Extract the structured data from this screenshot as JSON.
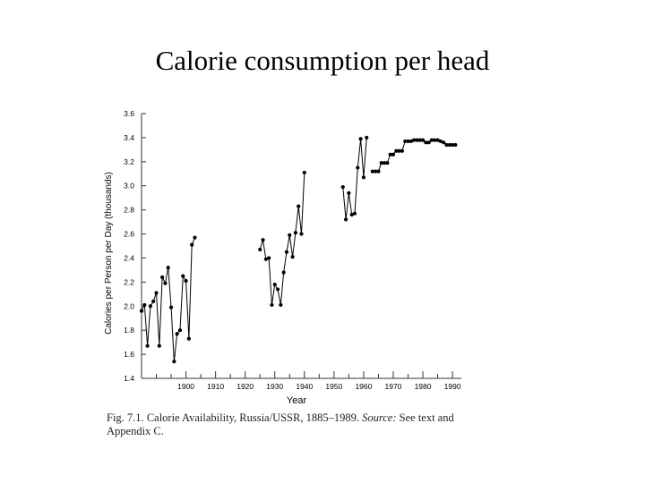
{
  "slide": {
    "title": "Calorie consumption per head"
  },
  "chart_data": {
    "type": "line",
    "title": "",
    "xlabel": "Year",
    "ylabel": "Calories per Person per Day (thousands)",
    "xlim": [
      1885,
      1993
    ],
    "ylim": [
      1.4,
      3.6
    ],
    "x_ticks": [
      1900,
      1910,
      1920,
      1930,
      1940,
      1950,
      1960,
      1970,
      1980,
      1990
    ],
    "y_ticks": [
      "1.4",
      "1.6",
      "1.8",
      "2.0",
      "2.2",
      "2.4",
      "2.6",
      "2.8",
      "3.0",
      "3.2",
      "3.4",
      "3.6"
    ],
    "grid": false,
    "legend": "none",
    "line_color": "#000000",
    "segments": [
      {
        "x": [
          1885,
          1886,
          1887,
          1888,
          1889,
          1890,
          1891,
          1892,
          1893,
          1894,
          1895,
          1896,
          1897,
          1898,
          1899,
          1900,
          1901,
          1902,
          1903,
          1904,
          1905,
          1906,
          1907,
          1908,
          1909,
          1910,
          1911,
          1912,
          1913
        ],
        "y": [
          1.96,
          2.01,
          1.67,
          2.0,
          2.04,
          2.11,
          1.67,
          2.24,
          2.19,
          2.32,
          1.99,
          1.54,
          1.77,
          1.8,
          2.25,
          2.21,
          1.73,
          2.51,
          2.57,
          null,
          null,
          null,
          null,
          null,
          null,
          null,
          null,
          null,
          null
        ]
      },
      {
        "x": [
          1925,
          1926,
          1927,
          1928,
          1929,
          1930,
          1931,
          1932,
          1933,
          1934,
          1935,
          1936,
          1937,
          1938,
          1939,
          1940
        ],
        "y": [
          2.47,
          2.55,
          2.39,
          2.4,
          2.01,
          2.18,
          2.14,
          2.01,
          2.28,
          2.45,
          2.59,
          2.41,
          2.61,
          2.83,
          2.6,
          3.11
        ]
      },
      {
        "x": [
          1953,
          1954,
          1955,
          1956,
          1957,
          1958,
          1959,
          1960,
          1961
        ],
        "y": [
          2.99,
          2.72,
          2.94,
          2.76,
          2.77,
          3.15,
          3.39,
          3.07,
          3.4
        ]
      },
      {
        "x": [
          1963,
          1964,
          1965,
          1966,
          1967,
          1968,
          1969,
          1970,
          1971,
          1972,
          1973,
          1974,
          1975,
          1976,
          1977,
          1978,
          1979,
          1980,
          1981,
          1982,
          1983,
          1984,
          1985,
          1986,
          1987,
          1988,
          1989,
          1990,
          1991
        ],
        "y": [
          3.12,
          3.12,
          3.12,
          3.19,
          3.19,
          3.19,
          3.26,
          3.26,
          3.29,
          3.29,
          3.29,
          3.37,
          3.37,
          3.37,
          3.38,
          3.38,
          3.38,
          3.38,
          3.36,
          3.36,
          3.38,
          3.38,
          3.38,
          3.37,
          3.36,
          3.34,
          3.34,
          3.34,
          3.34
        ]
      }
    ]
  },
  "caption": {
    "fig_label": "Fig. 7.1.",
    "main": "Calorie Availability, Russia/USSR, 1885–1989.",
    "source_label": "Source:",
    "source_text": "See text and Appendix C."
  }
}
